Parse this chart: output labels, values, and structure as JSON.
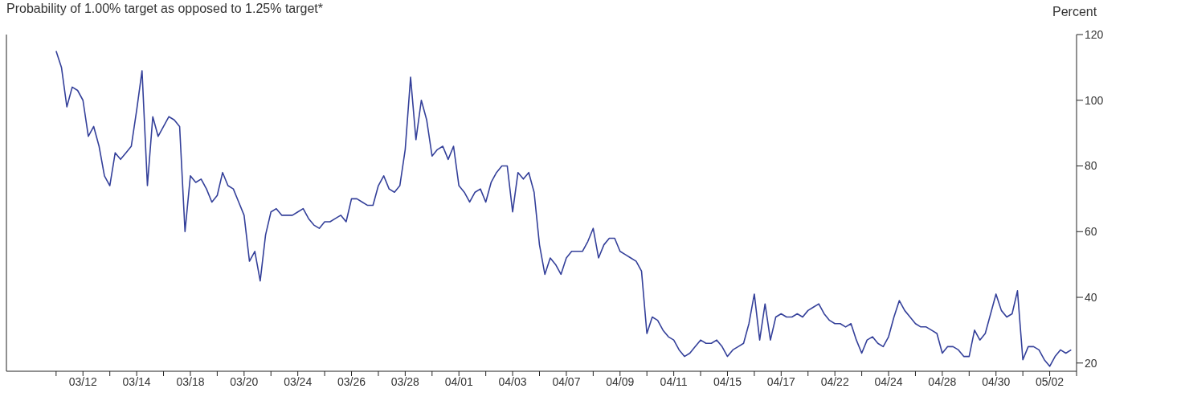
{
  "chart_data": {
    "type": "line",
    "title": "Probability of 1.00% target as opposed to 1.25% target*",
    "ylabel": "Percent",
    "categories": [
      null,
      null,
      null,
      null,
      null,
      "03/12",
      null,
      null,
      null,
      null,
      null,
      null,
      null,
      null,
      null,
      "03/14",
      null,
      null,
      null,
      null,
      null,
      null,
      null,
      null,
      null,
      "03/18",
      null,
      null,
      null,
      null,
      null,
      null,
      null,
      null,
      null,
      "03/20",
      null,
      null,
      null,
      null,
      null,
      null,
      null,
      null,
      null,
      "03/24",
      null,
      null,
      null,
      null,
      null,
      null,
      null,
      null,
      null,
      "03/26",
      null,
      null,
      null,
      null,
      null,
      null,
      null,
      null,
      null,
      "03/28",
      null,
      null,
      null,
      null,
      null,
      null,
      null,
      null,
      null,
      "04/01",
      null,
      null,
      null,
      null,
      null,
      null,
      null,
      null,
      null,
      "04/03",
      null,
      null,
      null,
      null,
      null,
      null,
      null,
      null,
      null,
      "04/07",
      null,
      null,
      null,
      null,
      null,
      null,
      null,
      null,
      null,
      "04/09",
      null,
      null,
      null,
      null,
      null,
      null,
      null,
      null,
      null,
      "04/11",
      null,
      null,
      null,
      null,
      null,
      null,
      null,
      null,
      null,
      "04/15",
      null,
      null,
      null,
      null,
      null,
      null,
      null,
      null,
      null,
      "04/17",
      null,
      null,
      null,
      null,
      null,
      null,
      null,
      null,
      null,
      "04/22",
      null,
      null,
      null,
      null,
      null,
      null,
      null,
      null,
      null,
      "04/24",
      null,
      null,
      null,
      null,
      null,
      null,
      null,
      null,
      null,
      "04/28",
      null,
      null,
      null,
      null,
      null,
      null,
      null,
      null,
      null,
      "04/30",
      null,
      null,
      null,
      null,
      null,
      null,
      null,
      null,
      null,
      "05/02",
      null,
      null,
      null,
      null
    ],
    "series": [
      {
        "color": "#34409a",
        "values": [
          115,
          110,
          98,
          104,
          103,
          100,
          89,
          92,
          86,
          77,
          74,
          84,
          82,
          84,
          86,
          97,
          109,
          74,
          95,
          89,
          92,
          95,
          94,
          92,
          60,
          77,
          75,
          76,
          73,
          69,
          71,
          78,
          74,
          73,
          69,
          65,
          51,
          54,
          45,
          59,
          66,
          67,
          65,
          65,
          65,
          66,
          67,
          64,
          62,
          61,
          63,
          63,
          64,
          65,
          63,
          70,
          70,
          69,
          68,
          68,
          74,
          77,
          73,
          72,
          74,
          85,
          107,
          88,
          100,
          94,
          83,
          85,
          86,
          82,
          86,
          74,
          72,
          69,
          72,
          73,
          69,
          75,
          78,
          80,
          80,
          66,
          78,
          76,
          78,
          72,
          56,
          47,
          52,
          50,
          47,
          52,
          54,
          54,
          54,
          57,
          61,
          52,
          56,
          58,
          58,
          54,
          53,
          52,
          51,
          48,
          29,
          34,
          33,
          30,
          28,
          27,
          24,
          22,
          23,
          25,
          27,
          26,
          26,
          27,
          25,
          22,
          24,
          25,
          26,
          32,
          41,
          27,
          38,
          27,
          34,
          35,
          34,
          34,
          35,
          34,
          36,
          37,
          38,
          35,
          33,
          32,
          32,
          31,
          32,
          27,
          23,
          27,
          28,
          26,
          25,
          28,
          34,
          39,
          36,
          34,
          32,
          31,
          31,
          30,
          29,
          23,
          25,
          25,
          24,
          22,
          22,
          30,
          27,
          29,
          35,
          41,
          36,
          34,
          35,
          42,
          21,
          25,
          25,
          24,
          21,
          19,
          22,
          24,
          23,
          24
        ]
      }
    ],
    "ylim": [
      17.5,
      120
    ],
    "yticks": [
      20,
      40,
      60,
      80,
      100,
      120
    ],
    "line_style": "solid"
  }
}
